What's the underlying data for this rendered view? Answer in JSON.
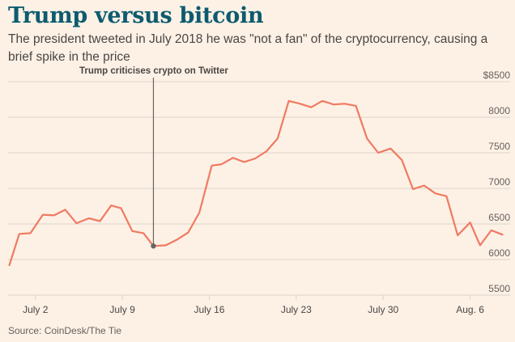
{
  "header": {
    "title": "Trump versus bitcoin",
    "subtitle": "The president tweeted in July 2018 he was \"not a fan\" of the cryptocurrency, causing a brief spike in the price"
  },
  "footer": {
    "source": "Source: CoinDesk/The Tie"
  },
  "colors": {
    "line": "#f07a61",
    "title": "#0d5b6e",
    "background": "#fdf1e6",
    "grid": "#dcd3cb",
    "annotation": "#6b6560"
  },
  "chart_data": {
    "type": "line",
    "title": "",
    "xlabel": "",
    "ylabel": "",
    "ylim": [
      5500,
      8500
    ],
    "yticks": [
      5500,
      6000,
      6500,
      7000,
      7500,
      8000,
      8500
    ],
    "ytick_labels": [
      "5500",
      "6000",
      "6500",
      "7000",
      "7500",
      "8000",
      "$8500"
    ],
    "xticks": [
      {
        "label": "July 2",
        "day": 2
      },
      {
        "label": "July 9",
        "day": 9
      },
      {
        "label": "July 16",
        "day": 16
      },
      {
        "label": "July 23",
        "day": 23
      },
      {
        "label": "July 30",
        "day": 30
      },
      {
        "label": "Aug. 6",
        "day": 37
      }
    ],
    "grid": true,
    "series": [
      {
        "values": [
          [
            -0.1,
            5920
          ],
          [
            0.7,
            6360
          ],
          [
            1.6,
            6370
          ],
          [
            2.6,
            6630
          ],
          [
            3.5,
            6620
          ],
          [
            4.4,
            6700
          ],
          [
            5.3,
            6510
          ],
          [
            6.3,
            6580
          ],
          [
            7.2,
            6540
          ],
          [
            8.1,
            6760
          ],
          [
            8.9,
            6720
          ],
          [
            9.8,
            6400
          ],
          [
            10.7,
            6370
          ],
          [
            11.5,
            6190
          ],
          [
            12.5,
            6200
          ],
          [
            13.4,
            6280
          ],
          [
            14.3,
            6380
          ],
          [
            15.2,
            6660
          ],
          [
            16.2,
            7320
          ],
          [
            17.0,
            7340
          ],
          [
            17.9,
            7430
          ],
          [
            18.8,
            7370
          ],
          [
            19.7,
            7420
          ],
          [
            20.6,
            7520
          ],
          [
            21.5,
            7700
          ],
          [
            22.4,
            8230
          ],
          [
            23.3,
            8190
          ],
          [
            24.2,
            8140
          ],
          [
            25.1,
            8230
          ],
          [
            26.0,
            8180
          ],
          [
            26.9,
            8190
          ],
          [
            27.8,
            8160
          ],
          [
            28.7,
            7700
          ],
          [
            29.6,
            7500
          ],
          [
            30.6,
            7560
          ],
          [
            31.5,
            7400
          ],
          [
            32.4,
            6990
          ],
          [
            33.3,
            7040
          ],
          [
            34.2,
            6930
          ],
          [
            35.1,
            6890
          ],
          [
            36.0,
            6340
          ],
          [
            37.0,
            6520
          ],
          [
            37.8,
            6200
          ],
          [
            38.7,
            6410
          ],
          [
            39.6,
            6350
          ]
        ]
      }
    ],
    "annotations": [
      {
        "label": "Trump criticises crypto on Twitter",
        "day": 11.5,
        "value": 6190
      }
    ]
  }
}
